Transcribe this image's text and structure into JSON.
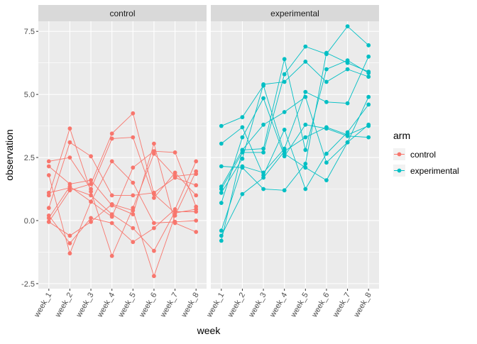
{
  "chart_data": {
    "type": "line",
    "facet_by": "arm",
    "panels": [
      "control",
      "experimental"
    ],
    "x": [
      "week_1",
      "week_2",
      "week_3",
      "week_4",
      "week_5",
      "week_6",
      "week_7",
      "week_8"
    ],
    "xlabel": "week",
    "ylabel": "observation",
    "ylim": [
      -2.7,
      7.9
    ],
    "yticks": [
      -2.5,
      0.0,
      2.5,
      5.0,
      7.5
    ],
    "ytick_labels": [
      "-2.5",
      "0.0",
      "2.5",
      "5.0",
      "7.5"
    ],
    "grid": true,
    "legend": {
      "title": "arm",
      "placement": "right",
      "entries": [
        {
          "label": "control",
          "color": "#F8766D"
        },
        {
          "label": "experimental",
          "color": "#00BFC4"
        }
      ]
    },
    "series": [
      {
        "arm": "control",
        "values": [
          0.2,
          -0.9,
          0.1,
          -0.1,
          -0.85,
          -0.3,
          0.45,
          2.35
        ]
      },
      {
        "arm": "control",
        "values": [
          1.1,
          1.3,
          1.0,
          0.25,
          -0.3,
          -1.2,
          0.35,
          0.35
        ]
      },
      {
        "arm": "control",
        "values": [
          2.15,
          1.45,
          1.6,
          0.6,
          0.25,
          3.05,
          -0.1,
          -0.45
        ]
      },
      {
        "arm": "control",
        "values": [
          -0.05,
          1.2,
          1.45,
          3.45,
          4.25,
          1.05,
          0.3,
          0.45
        ]
      },
      {
        "arm": "control",
        "values": [
          2.35,
          2.5,
          1.25,
          3.25,
          3.3,
          0.9,
          1.9,
          1.0
        ]
      },
      {
        "arm": "control",
        "values": [
          0.1,
          1.35,
          0.75,
          2.35,
          1.5,
          -0.1,
          -0.05,
          0.0
        ]
      },
      {
        "arm": "control",
        "values": [
          1.0,
          3.65,
          1.15,
          -1.4,
          0.5,
          2.65,
          1.75,
          1.85
        ]
      },
      {
        "arm": "control",
        "values": [
          1.8,
          -1.3,
          0.75,
          0.15,
          2.1,
          2.75,
          2.7,
          0.55
        ]
      },
      {
        "arm": "control",
        "values": [
          0.5,
          3.1,
          2.55,
          1.0,
          1.0,
          1.1,
          1.7,
          1.4
        ]
      },
      {
        "arm": "control",
        "values": [
          -0.05,
          -0.6,
          -0.05,
          0.65,
          0.4,
          -2.2,
          0.2,
          1.95
        ]
      },
      {
        "arm": "experimental",
        "values": [
          1.35,
          2.8,
          2.85,
          6.4,
          2.8,
          6.0,
          6.35,
          5.85
        ]
      },
      {
        "arm": "experimental",
        "values": [
          1.25,
          2.7,
          2.7,
          5.8,
          6.9,
          6.6,
          7.7,
          6.95
        ]
      },
      {
        "arm": "experimental",
        "values": [
          1.1,
          2.45,
          5.4,
          5.5,
          6.3,
          5.5,
          6.0,
          5.7
        ]
      },
      {
        "arm": "experimental",
        "values": [
          -0.4,
          2.15,
          1.9,
          2.85,
          5.1,
          4.7,
          4.65,
          6.5
        ]
      },
      {
        "arm": "experimental",
        "values": [
          0.7,
          3.3,
          4.85,
          2.55,
          3.8,
          3.65,
          3.35,
          3.3
        ]
      },
      {
        "arm": "experimental",
        "values": [
          2.15,
          2.1,
          1.25,
          1.2,
          2.25,
          6.65,
          6.25,
          5.9
        ]
      },
      {
        "arm": "experimental",
        "values": [
          -0.8,
          2.8,
          3.8,
          4.3,
          4.9,
          2.3,
          3.1,
          4.9
        ]
      },
      {
        "arm": "experimental",
        "values": [
          3.05,
          3.7,
          1.8,
          3.6,
          1.25,
          2.65,
          3.5,
          4.6
        ]
      },
      {
        "arm": "experimental",
        "values": [
          3.75,
          4.1,
          5.35,
          2.65,
          2.1,
          1.6,
          3.1,
          3.8
        ]
      },
      {
        "arm": "experimental",
        "values": [
          -0.6,
          1.05,
          1.7,
          2.75,
          3.3,
          3.7,
          3.4,
          3.75
        ]
      }
    ]
  }
}
